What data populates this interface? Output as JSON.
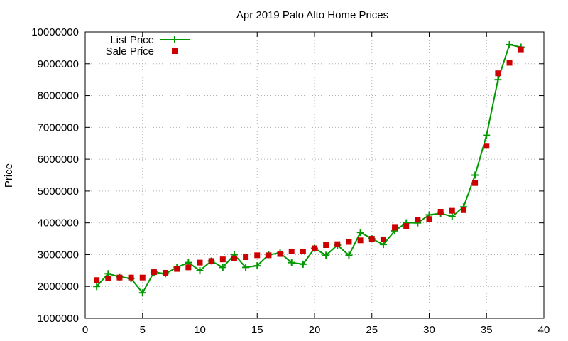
{
  "chart_data": {
    "type": "line",
    "title": "Apr 2019 Palo Alto Home Prices",
    "xlabel": "",
    "ylabel": "Price",
    "xlim": [
      0,
      40
    ],
    "ylim": [
      1000000,
      10000000
    ],
    "x_ticks": [
      "0",
      "5",
      "10",
      "15",
      "20",
      "25",
      "30",
      "35",
      "40"
    ],
    "y_ticks": [
      "1000000",
      "2000000",
      "3000000",
      "4000000",
      "5000000",
      "6000000",
      "7000000",
      "8000000",
      "9000000",
      "10000000"
    ],
    "grid": true,
    "legend_position": "top-left",
    "series": [
      {
        "name": "List Price",
        "style": "line-with-plus-markers",
        "color": "#009900",
        "x": [
          1,
          2,
          3,
          4,
          5,
          6,
          7,
          8,
          9,
          10,
          11,
          12,
          13,
          14,
          15,
          16,
          17,
          18,
          19,
          20,
          21,
          22,
          23,
          24,
          25,
          26,
          27,
          28,
          29,
          30,
          31,
          32,
          33,
          34,
          35,
          36,
          37,
          38
        ],
        "values": [
          2000000,
          2400000,
          2300000,
          2250000,
          1800000,
          2450000,
          2400000,
          2600000,
          2750000,
          2500000,
          2800000,
          2600000,
          3000000,
          2600000,
          2650000,
          3000000,
          3050000,
          2750000,
          2700000,
          3200000,
          2980000,
          3300000,
          2980000,
          3700000,
          3500000,
          3320000,
          3750000,
          4000000,
          4000000,
          4250000,
          4300000,
          4200000,
          4500000,
          5500000,
          6750000,
          8500000,
          9600000,
          9520000
        ]
      },
      {
        "name": "Sale Price",
        "style": "square-markers",
        "color": "#cc0000",
        "x": [
          1,
          2,
          3,
          4,
          5,
          6,
          7,
          8,
          9,
          10,
          11,
          12,
          13,
          14,
          15,
          16,
          17,
          18,
          19,
          20,
          21,
          22,
          23,
          24,
          25,
          26,
          27,
          28,
          29,
          30,
          31,
          32,
          33,
          34,
          35,
          36,
          37,
          38
        ],
        "values": [
          2200000,
          2250000,
          2280000,
          2280000,
          2280000,
          2450000,
          2430000,
          2550000,
          2600000,
          2750000,
          2800000,
          2850000,
          2880000,
          2920000,
          2980000,
          2980000,
          3020000,
          3100000,
          3100000,
          3200000,
          3300000,
          3330000,
          3400000,
          3450000,
          3500000,
          3480000,
          3850000,
          3900000,
          4100000,
          4120000,
          4350000,
          4380000,
          4400000,
          5250000,
          6420000,
          8700000,
          9030000,
          9450000
        ]
      }
    ]
  }
}
